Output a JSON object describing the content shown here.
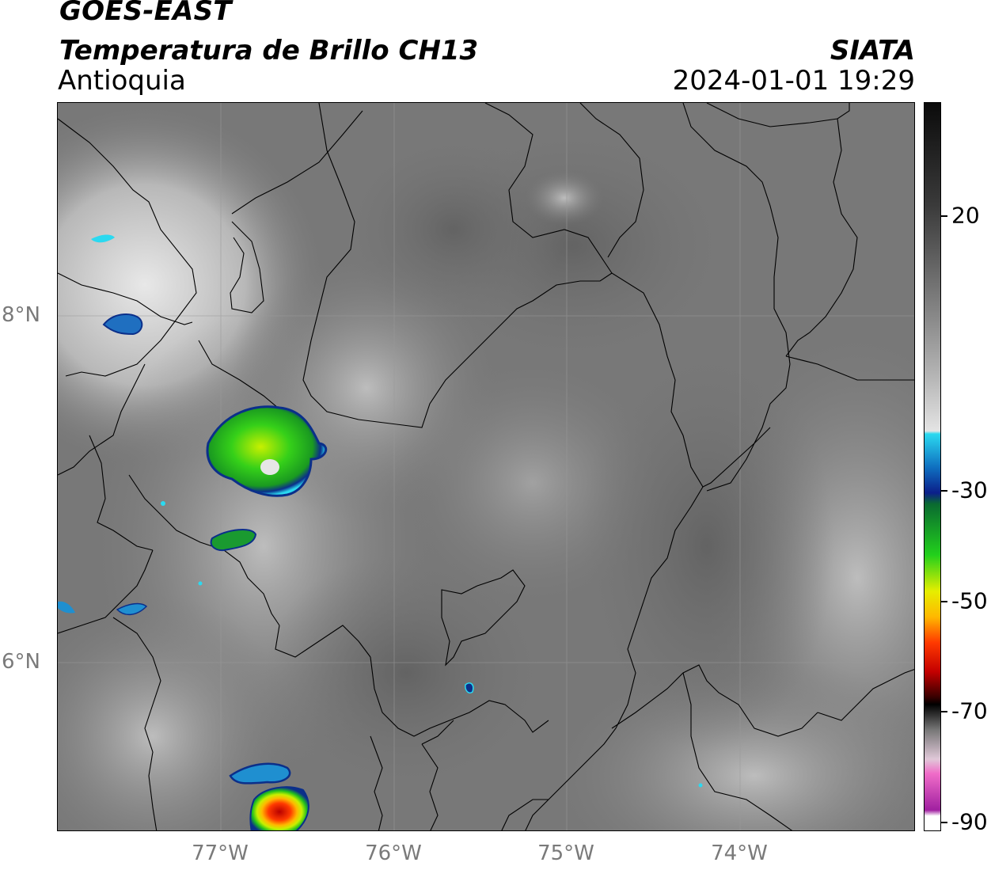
{
  "header": {
    "satellite": "GOES-EAST",
    "product": "Temperatura de Brillo CH13",
    "region": "Antioquia",
    "brand": "SIATA",
    "datetime": "2024-01-01 19:29"
  },
  "map": {
    "lat_labels": [
      "8°N",
      "6°N"
    ],
    "lon_labels": [
      "77°W",
      "76°W",
      "75°W",
      "74°W"
    ]
  },
  "colorbar": {
    "labels": [
      "20",
      "-30",
      "-50",
      "-70",
      "-90"
    ],
    "stops": [
      {
        "offset": "0%",
        "color": "#0b0b0b"
      },
      {
        "offset": "14%",
        "color": "#3a3a3a"
      },
      {
        "offset": "30%",
        "color": "#8c8c8c"
      },
      {
        "offset": "38%",
        "color": "#b8b8b8"
      },
      {
        "offset": "45%",
        "color": "#e4e4e4"
      },
      {
        "offset": "45.4%",
        "color": "#2bd9f0"
      },
      {
        "offset": "50%",
        "color": "#0f6fc0"
      },
      {
        "offset": "53.5%",
        "color": "#0b1f8a"
      },
      {
        "offset": "55%",
        "color": "#0a6a30"
      },
      {
        "offset": "62%",
        "color": "#22d01c"
      },
      {
        "offset": "67%",
        "color": "#e6ee00"
      },
      {
        "offset": "70.5%",
        "color": "#ffb800"
      },
      {
        "offset": "74%",
        "color": "#ff3a00"
      },
      {
        "offset": "78%",
        "color": "#c40000"
      },
      {
        "offset": "81.5%",
        "color": "#380000"
      },
      {
        "offset": "82.5%",
        "color": "#000000"
      },
      {
        "offset": "86%",
        "color": "#777777"
      },
      {
        "offset": "90%",
        "color": "#e0c8d8"
      },
      {
        "offset": "92%",
        "color": "#f06cc8"
      },
      {
        "offset": "97%",
        "color": "#a020a0"
      },
      {
        "offset": "97.8%",
        "color": "#ffffff"
      },
      {
        "offset": "100%",
        "color": "#ffffff"
      }
    ]
  }
}
